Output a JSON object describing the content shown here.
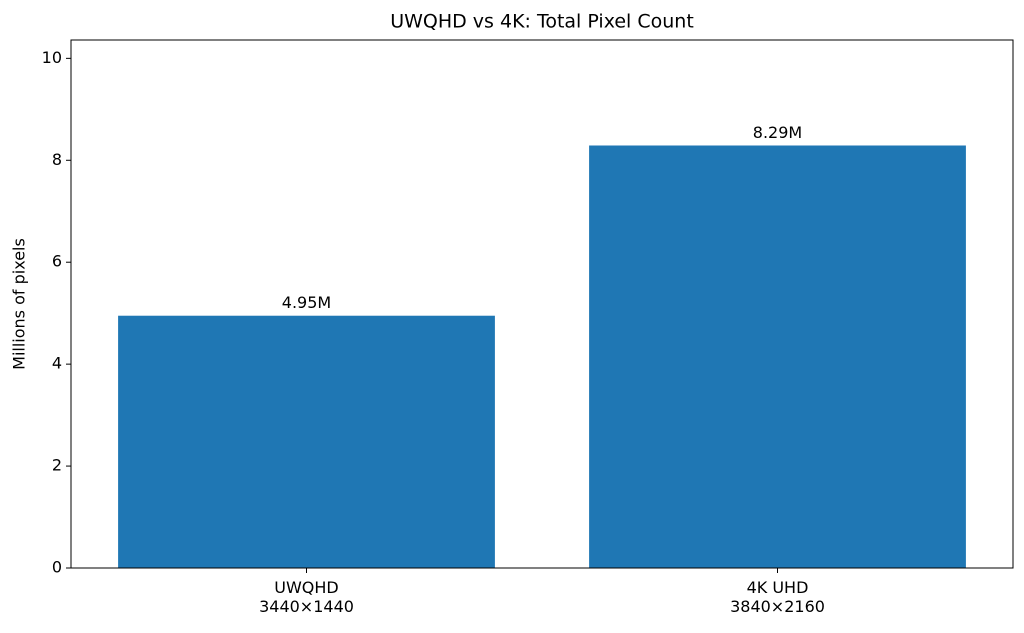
{
  "chart_data": {
    "type": "bar",
    "title": "UWQHD vs 4K: Total Pixel Count",
    "y_label": "Millions of pixels",
    "categories": [
      "UWQHD\n3440×1440",
      "4K UHD\n3840×2160"
    ],
    "values": [
      4.95,
      8.29
    ],
    "value_labels": [
      "4.95M",
      "8.29M"
    ],
    "color": "#1f77b4",
    "ylim": [
      0,
      10.36
    ],
    "yticks": [
      0,
      2,
      4,
      6,
      8,
      10
    ],
    "grid": false
  }
}
